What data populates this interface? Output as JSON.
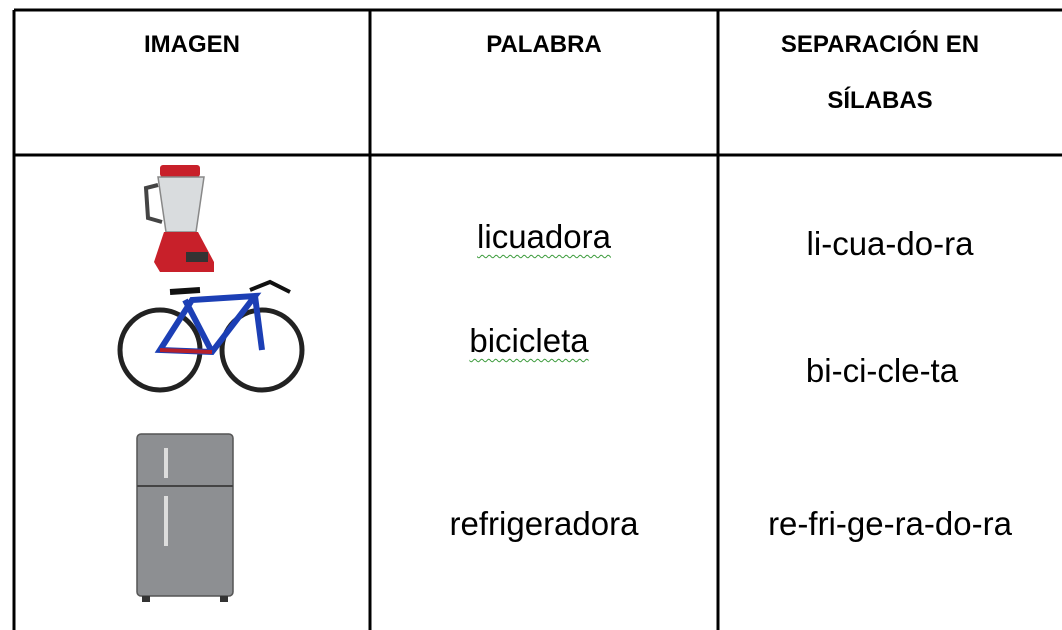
{
  "table": {
    "header": [
      "IMAGEN",
      "PALABRA",
      "SEPARACIÓN EN SÍLABAS"
    ],
    "rows": [
      [
        "licuadora",
        "li-cua-do-ra"
      ],
      [
        "bicicleta",
        "bi-ci-cle-ta"
      ],
      [
        "refrigeradora",
        "re-fri-ge-ra-do-ra"
      ]
    ]
  }
}
